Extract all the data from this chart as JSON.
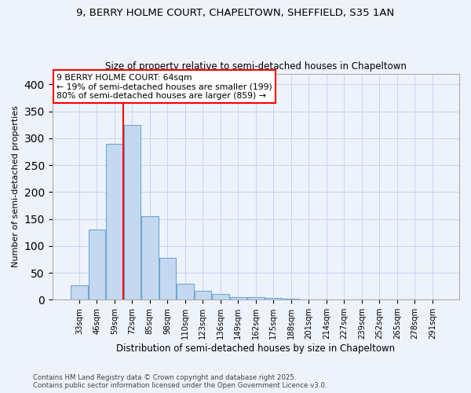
{
  "title1": "9, BERRY HOLME COURT, CHAPELTOWN, SHEFFIELD, S35 1AN",
  "title2": "Size of property relative to semi-detached houses in Chapeltown",
  "xlabel": "Distribution of semi-detached houses by size in Chapeltown",
  "ylabel": "Number of semi-detached properties",
  "annotation_title": "9 BERRY HOLME COURT: 64sqm",
  "annotation_line1": "← 19% of semi-detached houses are smaller (199)",
  "annotation_line2": "80% of semi-detached houses are larger (859) →",
  "footer1": "Contains HM Land Registry data © Crown copyright and database right 2025.",
  "footer2": "Contains public sector information licensed under the Open Government Licence v3.0.",
  "bar_labels": [
    "33sqm",
    "46sqm",
    "59sqm",
    "72sqm",
    "85sqm",
    "98sqm",
    "110sqm",
    "123sqm",
    "136sqm",
    "149sqm",
    "162sqm",
    "175sqm",
    "188sqm",
    "201sqm",
    "214sqm",
    "227sqm",
    "239sqm",
    "252sqm",
    "265sqm",
    "278sqm",
    "291sqm"
  ],
  "bar_values": [
    27,
    130,
    290,
    325,
    155,
    78,
    30,
    17,
    10,
    5,
    5,
    3,
    2,
    1,
    1,
    0,
    0,
    0,
    0,
    0,
    1
  ],
  "bar_color": "#c5d8f0",
  "bar_edge_color": "#6aaad4",
  "red_line_index": 2,
  "ylim": [
    0,
    420
  ],
  "yticks": [
    0,
    50,
    100,
    150,
    200,
    250,
    300,
    350,
    400
  ],
  "background_color": "#eef2fb",
  "grid_color": "#c8d4ee",
  "figwidth": 6.0,
  "figheight": 5.0,
  "dpi": 100
}
